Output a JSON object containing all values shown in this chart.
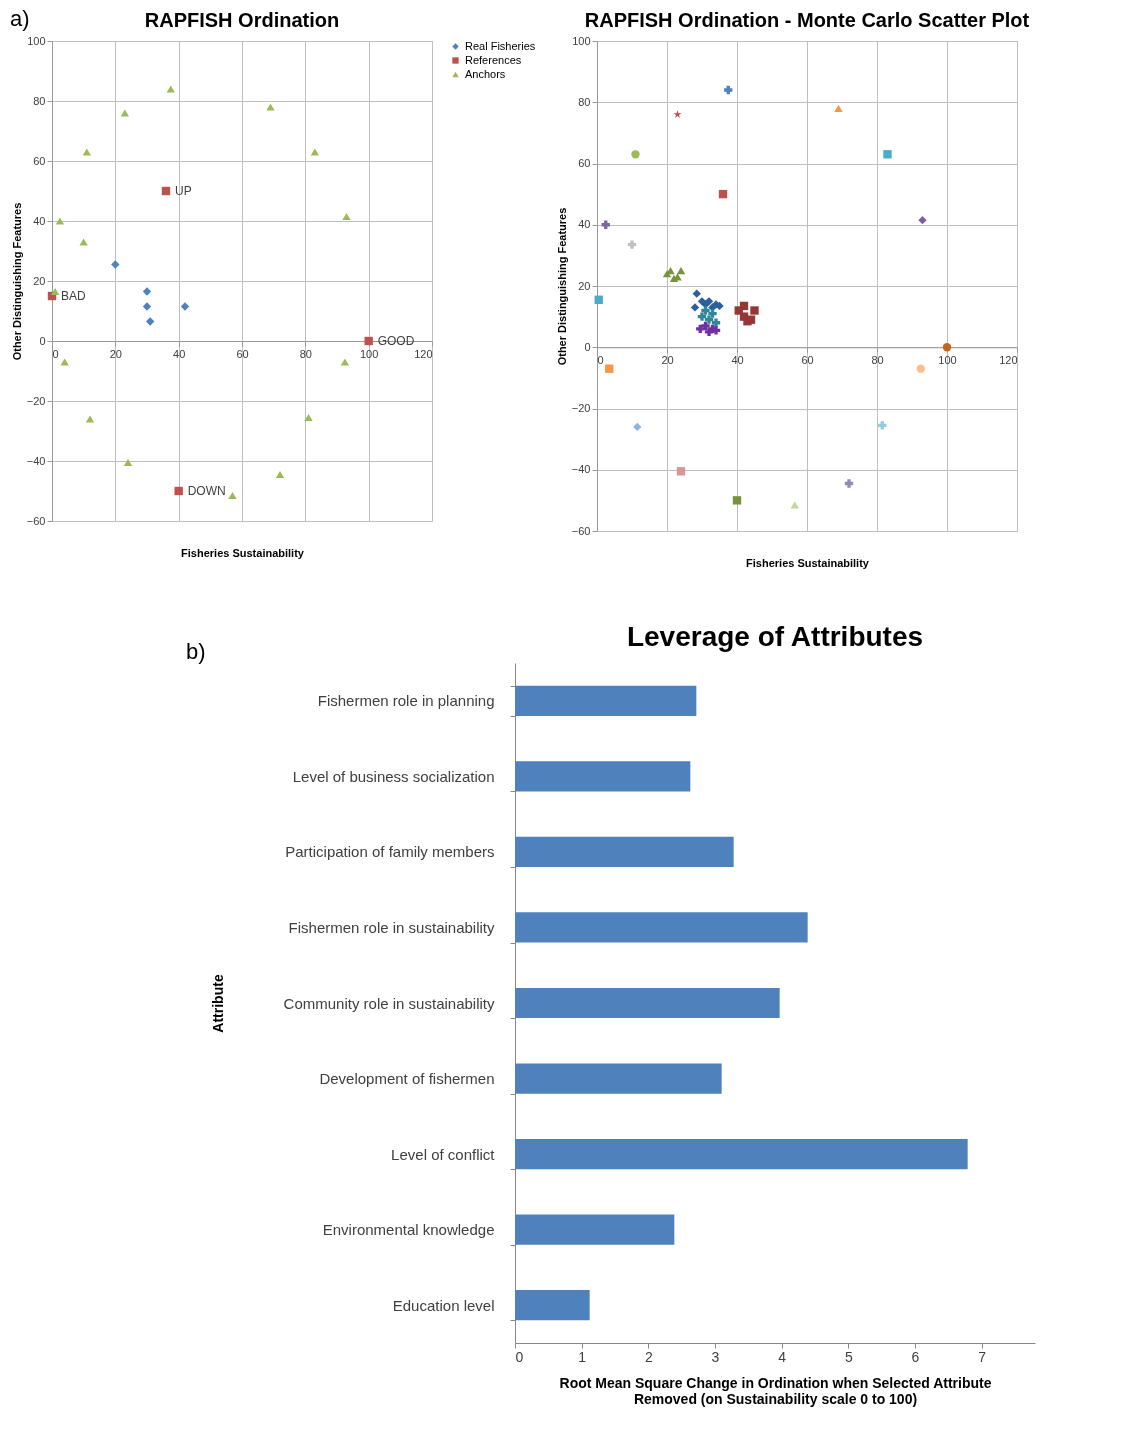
{
  "chart_data": [
    {
      "type": "scatter",
      "title": "RAPFISH Ordination",
      "xlabel": "Fisheries Sustainability",
      "ylabel": "Other Distinguishing Features",
      "annotations": [
        "a)",
        {
          "text": "BAD",
          "x": 0,
          "y": 15
        },
        {
          "text": "UP",
          "x": 36,
          "y": 50
        },
        {
          "text": "GOOD",
          "x": 100,
          "y": 0
        },
        {
          "text": "DOWN",
          "x": 40,
          "y": -50
        }
      ],
      "xlim": [
        0,
        120
      ],
      "xticks": [
        0,
        20,
        40,
        60,
        80,
        100,
        120
      ],
      "ylim": [
        -60,
        100
      ],
      "yticks": [
        -60,
        -40,
        -20,
        0,
        20,
        40,
        60,
        80,
        100
      ],
      "grid": true,
      "legend": "right",
      "series": [
        {
          "name": "Real Fisheries",
          "color": "#4f81bd",
          "marker": "diamond",
          "x": [
            20,
            30,
            30,
            31,
            42
          ],
          "values": [
            25.5,
            16.5,
            11.5,
            6.5,
            11.5
          ]
        },
        {
          "name": "References",
          "color": "#c0504d",
          "marker": "square",
          "x": [
            0,
            36,
            100,
            40
          ],
          "values": [
            15,
            50,
            0,
            -50
          ]
        },
        {
          "name": "Anchors",
          "color": "#9bbb59",
          "marker": "triangle",
          "x": [
            1,
            2.5,
            4,
            10,
            11,
            12,
            23,
            24,
            37.5,
            57,
            69,
            72,
            81,
            83,
            92.5,
            93
          ],
          "values": [
            16.5,
            40,
            -7,
            33,
            63,
            -26,
            76,
            -40.5,
            84,
            -51.5,
            78,
            -44.5,
            -25.5,
            63,
            -7,
            41.5
          ]
        }
      ]
    },
    {
      "type": "scatter",
      "title": "RAPFISH Ordination - Monte Carlo Scatter Plot",
      "xlabel": "Fisheries Sustainability",
      "ylabel": "Other Distinguishing Features",
      "xlim": [
        0,
        120
      ],
      "xticks": [
        0,
        20,
        40,
        60,
        80,
        100,
        120
      ],
      "ylim": [
        -60,
        100
      ],
      "yticks": [
        -60,
        -40,
        -20,
        0,
        20,
        40,
        60,
        80,
        100
      ],
      "grid": true,
      "series": [
        {
          "color": "#4f81bd",
          "marker": "cross",
          "x": [
            37.5
          ],
          "values": [
            84
          ]
        },
        {
          "color": "#c0504d",
          "marker": "star",
          "x": [
            23
          ],
          "values": [
            76
          ]
        },
        {
          "color": "#9bbb59",
          "marker": "circle",
          "x": [
            11
          ],
          "values": [
            63
          ]
        },
        {
          "color": "#f79646",
          "marker": "triangle",
          "x": [
            69
          ],
          "values": [
            78
          ]
        },
        {
          "color": "#4bacc6",
          "marker": "square",
          "x": [
            83
          ],
          "values": [
            63
          ]
        },
        {
          "color": "#c0504d",
          "marker": "square",
          "x": [
            36
          ],
          "values": [
            50
          ]
        },
        {
          "color": "#8064a2",
          "marker": "cross",
          "x": [
            2.5
          ],
          "values": [
            40
          ]
        },
        {
          "color": "#c0c0c0",
          "marker": "cross",
          "x": [
            10
          ],
          "values": [
            33.5
          ]
        },
        {
          "color": "#7f5fa0",
          "marker": "diamond",
          "x": [
            93
          ],
          "values": [
            41.5
          ]
        },
        {
          "color": "#4bacc6",
          "marker": "square",
          "x": [
            0.5
          ],
          "values": [
            15.5
          ]
        },
        {
          "color": "#77933c",
          "marker": "triangle",
          "x": [
            20,
            21,
            22,
            23,
            24
          ],
          "values": [
            24,
            25,
            22.5,
            23,
            25
          ]
        },
        {
          "color": "#2c5f9e",
          "marker": "diamond",
          "x": [
            28.5,
            28,
            30,
            31,
            32,
            33,
            34,
            35
          ],
          "values": [
            17.5,
            13,
            15,
            14,
            15,
            13,
            14,
            13.5
          ]
        },
        {
          "color": "#31859c",
          "marker": "cross",
          "x": [
            30,
            31,
            32,
            33,
            34
          ],
          "values": [
            10,
            12,
            9,
            11,
            8
          ]
        },
        {
          "color": "#7030a0",
          "marker": "cross",
          "x": [
            29.5,
            31,
            32,
            33,
            34
          ],
          "values": [
            6,
            7,
            5,
            6,
            5.5
          ]
        },
        {
          "color": "#953735",
          "marker": "square",
          "x": [
            40.5,
            42,
            43,
            45,
            42,
            44
          ],
          "values": [
            12,
            10,
            8.5,
            12,
            13.5,
            9
          ]
        },
        {
          "color": "#f79646",
          "marker": "square",
          "x": [
            3.5
          ],
          "values": [
            -7
          ]
        },
        {
          "color": "#fabf8f",
          "marker": "circle",
          "x": [
            92.5
          ],
          "values": [
            -7
          ]
        },
        {
          "color": "#c0661f",
          "marker": "circle",
          "x": [
            100
          ],
          "values": [
            0
          ]
        },
        {
          "color": "#8eb4e3",
          "marker": "diamond",
          "x": [
            11.5
          ],
          "values": [
            -26
          ]
        },
        {
          "color": "#93cddd",
          "marker": "cross",
          "x": [
            81.5
          ],
          "values": [
            -25.5
          ]
        },
        {
          "color": "#d99694",
          "marker": "square",
          "x": [
            24
          ],
          "values": [
            -40.5
          ]
        },
        {
          "color": "#8c8cb8",
          "marker": "cross",
          "x": [
            72
          ],
          "values": [
            -44.5
          ]
        },
        {
          "color": "#77933c",
          "marker": "square",
          "x": [
            40
          ],
          "values": [
            -50
          ]
        },
        {
          "color": "#c3d69b",
          "marker": "triangle",
          "x": [
            56.5
          ],
          "values": [
            -51.5
          ]
        }
      ]
    },
    {
      "type": "bar",
      "orientation": "horizontal",
      "title": "Leverage of Attributes",
      "ylabel": "Attribute",
      "xlabel": "Root Mean Square Change in Ordination when Selected Attribute Removed (on Sustainability scale 0 to 100)",
      "annotations": [
        "b)"
      ],
      "categories": [
        "Fishermen role in planning",
        "Level of business socialization",
        "Participation of family members",
        "Fishermen role in sustainability",
        "Community role in sustainability",
        "Development of fishermen",
        "Level of conflict",
        "Environmental knowledge",
        "Education level"
      ],
      "values": [
        2.72,
        2.63,
        3.28,
        4.39,
        3.97,
        3.1,
        6.79,
        2.39,
        1.12
      ],
      "color": "#4f81bd",
      "xlim": [
        0,
        7.8
      ],
      "xticks": [
        0,
        1,
        2,
        3,
        4,
        5,
        6,
        7
      ]
    }
  ]
}
